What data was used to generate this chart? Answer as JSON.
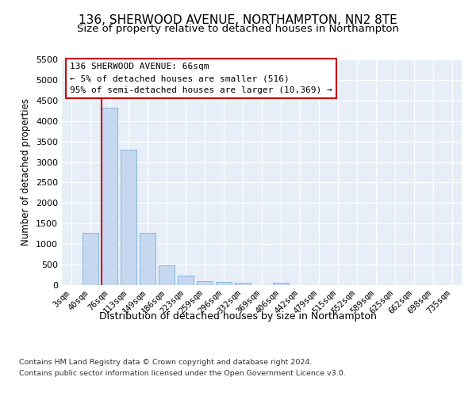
{
  "title1": "136, SHERWOOD AVENUE, NORTHAMPTON, NN2 8TE",
  "title2": "Size of property relative to detached houses in Northampton",
  "xlabel": "Distribution of detached houses by size in Northampton",
  "ylabel": "Number of detached properties",
  "categories": [
    "3sqm",
    "40sqm",
    "76sqm",
    "113sqm",
    "149sqm",
    "186sqm",
    "223sqm",
    "259sqm",
    "296sqm",
    "332sqm",
    "369sqm",
    "406sqm",
    "442sqm",
    "479sqm",
    "515sqm",
    "552sqm",
    "589sqm",
    "625sqm",
    "662sqm",
    "698sqm",
    "735sqm"
  ],
  "values": [
    0,
    1270,
    4330,
    3300,
    1280,
    490,
    230,
    90,
    75,
    60,
    0,
    50,
    0,
    0,
    0,
    0,
    0,
    0,
    0,
    0,
    0
  ],
  "bar_color": "#c5d8f0",
  "bar_edge_color": "#7bafd4",
  "vline_color": "#cc0000",
  "vline_x_index": 2,
  "annotation_text": "136 SHERWOOD AVENUE: 66sqm\n← 5% of detached houses are smaller (516)\n95% of semi-detached houses are larger (10,369) →",
  "ylim_max": 5500,
  "yticks": [
    0,
    500,
    1000,
    1500,
    2000,
    2500,
    3000,
    3500,
    4000,
    4500,
    5000,
    5500
  ],
  "bg_color": "#e8eef8",
  "grid_color": "#ffffff",
  "footer1": "Contains HM Land Registry data © Crown copyright and database right 2024.",
  "footer2": "Contains public sector information licensed under the Open Government Licence v3.0."
}
